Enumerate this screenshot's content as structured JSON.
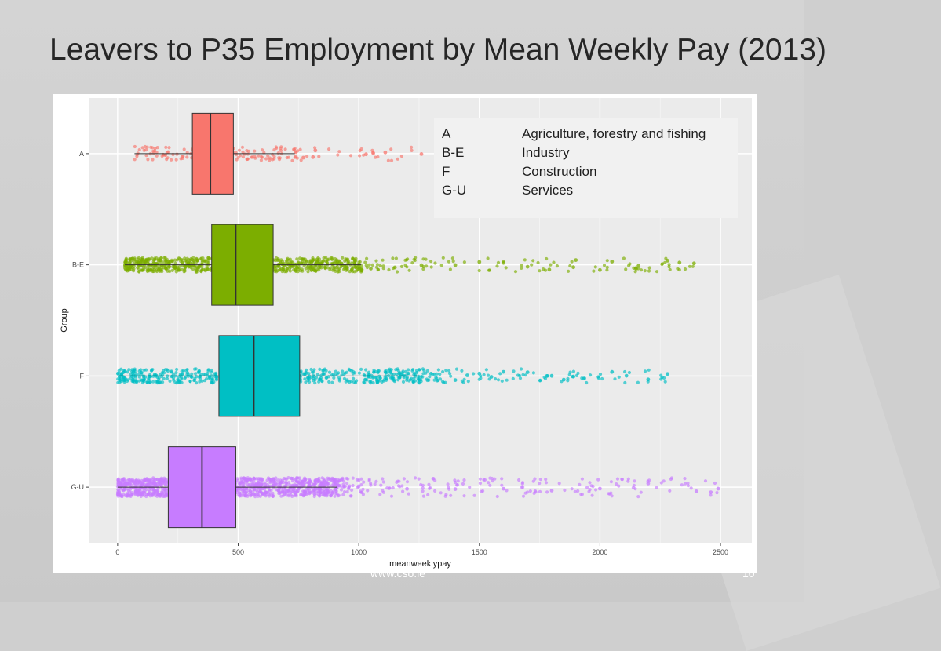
{
  "slide": {
    "title": "Leavers to P35 Employment by Mean Weekly Pay (2013)",
    "footer_url": "www.cso.ie",
    "page_number": "10"
  },
  "legend": [
    {
      "code": "A",
      "description": "Agriculture, forestry and fishing"
    },
    {
      "code": "B-E",
      "description": "Industry"
    },
    {
      "code": "F",
      "description": "Construction"
    },
    {
      "code": "G-U",
      "description": "Services"
    }
  ],
  "chart_data": {
    "type": "boxplot",
    "orientation": "horizontal",
    "xlabel": "meanweeklypay",
    "ylabel": "Group",
    "xlim": [
      -120,
      2630
    ],
    "xticks": [
      0,
      500,
      1000,
      1500,
      2000,
      2500
    ],
    "grid": true,
    "jitter_points": true,
    "series": [
      {
        "name": "A",
        "color": "#f8766d",
        "whisker_low": 70,
        "q1": 310,
        "median": 385,
        "q3": 480,
        "whisker_high": 735,
        "outliers": [
          770,
          810,
          820,
          1030,
          1060,
          1110,
          1260
        ]
      },
      {
        "name": "B-E",
        "color": "#7cae00",
        "whisker_low": 30,
        "q1": 390,
        "median": 490,
        "q3": 645,
        "whisker_high": 1010,
        "outliers": [
          1050,
          1150,
          1260,
          1400,
          1500,
          1600,
          1700,
          1790,
          1890,
          1900,
          2000,
          2050,
          2150,
          2160,
          2280,
          2330,
          2390
        ]
      },
      {
        "name": "F",
        "color": "#00bfc4",
        "whisker_low": 0,
        "q1": 420,
        "median": 565,
        "q3": 755,
        "whisker_high": 1250,
        "outliers": [
          1300,
          1400,
          1450,
          1500,
          1550,
          1600,
          1700,
          1780,
          1800,
          1850,
          1890,
          2050,
          2110,
          2200,
          2280
        ]
      },
      {
        "name": "G-U",
        "color": "#c77cff",
        "whisker_low": 0,
        "q1": 210,
        "median": 350,
        "q3": 490,
        "whisker_high": 910,
        "outliers": [
          1000,
          1200,
          1400,
          1600,
          1800,
          2000,
          2200,
          2400,
          2460,
          2490
        ]
      }
    ]
  }
}
